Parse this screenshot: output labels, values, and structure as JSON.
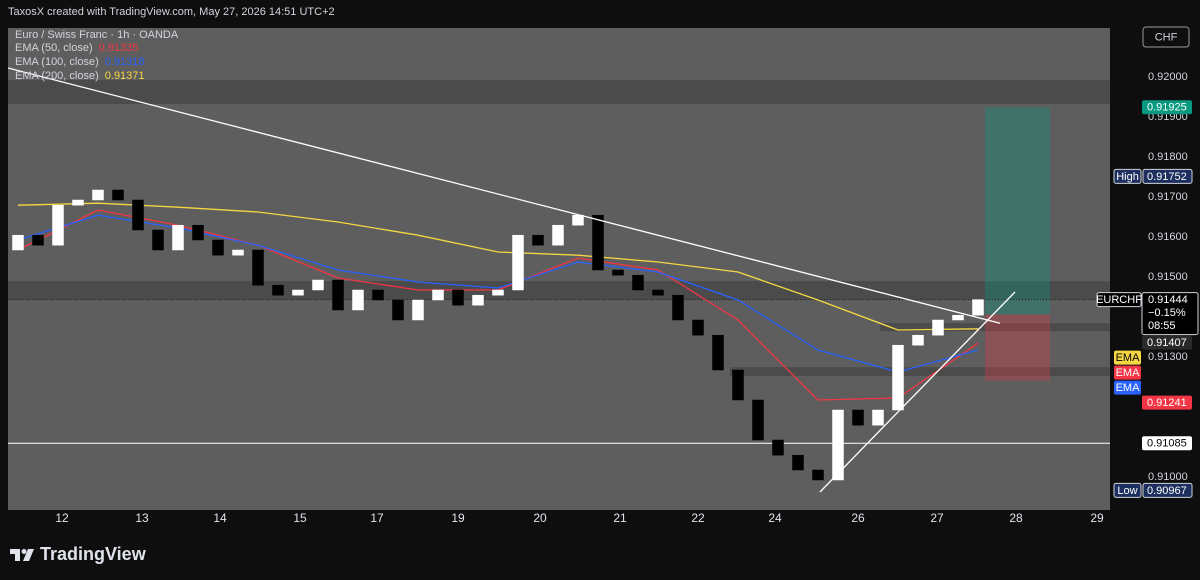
{
  "chart_data": {
    "type": "candlestick",
    "attribution": "TaxosX created with TradingView.com, May 27, 2026 14:51 UTC+2",
    "title": "Euro / Swiss Franc · 1h · OANDA",
    "currency": "CHF",
    "brand": "TradingView",
    "symbol": "EURCHF",
    "x": [
      0,
      1,
      2,
      3,
      4,
      5,
      6,
      7,
      8,
      9,
      10,
      11,
      12,
      13,
      14,
      15,
      16,
      17,
      18,
      19,
      20,
      21,
      22,
      23,
      24,
      25,
      26,
      27,
      28,
      29,
      30,
      31,
      32,
      33,
      34,
      35,
      36,
      37,
      38,
      39,
      40,
      41,
      42,
      43,
      44,
      45,
      46,
      47,
      48
    ],
    "open": [
      0.91568,
      0.91605,
      0.9158,
      0.9168,
      0.91693,
      0.91718,
      0.91693,
      0.91618,
      0.91568,
      0.9163,
      0.91593,
      0.91555,
      0.91568,
      0.9148,
      0.91455,
      0.91468,
      0.91493,
      0.91418,
      0.91468,
      0.91443,
      0.91393,
      0.91443,
      0.91468,
      0.9143,
      0.91455,
      0.91468,
      0.91605,
      0.9158,
      0.9163,
      0.91655,
      0.91518,
      0.91505,
      0.91468,
      0.91455,
      0.91393,
      0.91355,
      0.91268,
      0.91193,
      0.91093,
      0.91055,
      0.91018,
      0.90993,
      0.91168,
      0.9113,
      0.91168,
      0.9133,
      0.91355,
      0.91393,
      0.91405
    ],
    "high": {
      "label": "High",
      "value": 0.91752
    },
    "low": {
      "label": "Low",
      "value": 0.90967
    },
    "close": [
      0.91605,
      0.9158,
      0.9168,
      0.91693,
      0.91718,
      0.91693,
      0.91618,
      0.91568,
      0.9163,
      0.91593,
      0.91555,
      0.91568,
      0.9148,
      0.91455,
      0.91468,
      0.91493,
      0.91418,
      0.91468,
      0.91443,
      0.91393,
      0.91443,
      0.91468,
      0.9143,
      0.91455,
      0.91468,
      0.91605,
      0.9158,
      0.9163,
      0.91655,
      0.91518,
      0.91505,
      0.91468,
      0.91455,
      0.91393,
      0.91355,
      0.91268,
      0.91193,
      0.91093,
      0.91055,
      0.91018,
      0.90993,
      0.91168,
      0.9113,
      0.91168,
      0.9133,
      0.91355,
      0.91393,
      0.91405,
      0.91444
    ],
    "up_color": "#ffffff",
    "down_color": "#000000",
    "xlim": [
      -0.5,
      54.6
    ],
    "xticks": [
      {
        "value": 2.2,
        "label": "12"
      },
      {
        "value": 6.2,
        "label": "13"
      },
      {
        "value": 10.1,
        "label": "14"
      },
      {
        "value": 14.1,
        "label": "15"
      },
      {
        "value": 17.95,
        "label": "17"
      },
      {
        "value": 22,
        "label": "19"
      },
      {
        "value": 26.1,
        "label": "20"
      },
      {
        "value": 30.1,
        "label": "21"
      },
      {
        "value": 34,
        "label": "22"
      },
      {
        "value": 37.85,
        "label": "24"
      },
      {
        "value": 42,
        "label": "26"
      },
      {
        "value": 45.95,
        "label": "27"
      },
      {
        "value": 49.9,
        "label": "28"
      },
      {
        "value": 53.95,
        "label": "29"
      }
    ],
    "ylim": [
      0.90918,
      0.92123
    ],
    "yticks": [
      {
        "value": 0.92,
        "label": "0.92000"
      },
      {
        "value": 0.919,
        "label": "0.91900"
      },
      {
        "value": 0.918,
        "label": "0.91800"
      },
      {
        "value": 0.917,
        "label": "0.91700"
      },
      {
        "value": 0.916,
        "label": "0.91600"
      },
      {
        "value": 0.915,
        "label": "0.91500"
      },
      {
        "value": 0.913,
        "label": "0.91300"
      },
      {
        "value": 0.91,
        "label": "0.91000"
      }
    ],
    "grid": false,
    "series": [
      {
        "name": "EMA (50, close)",
        "color": "#f23645",
        "tag": "EMA",
        "x": [
          0,
          4,
          8,
          12,
          16,
          20,
          24,
          28,
          32,
          36,
          40,
          44,
          48
        ],
        "values": [
          0.91568,
          0.91668,
          0.9163,
          0.9158,
          0.91498,
          0.91468,
          0.91468,
          0.91548,
          0.91518,
          0.91393,
          0.91193,
          0.91198,
          0.91335
        ]
      },
      {
        "name": "EMA (100, close)",
        "color": "#2962ff",
        "tag": "EMA",
        "x": [
          0,
          4,
          8,
          12,
          16,
          20,
          24,
          28,
          32,
          36,
          40,
          44,
          48
        ],
        "values": [
          0.91593,
          0.91655,
          0.91623,
          0.9158,
          0.91518,
          0.91488,
          0.91473,
          0.91538,
          0.91513,
          0.91443,
          0.91318,
          0.91263,
          0.91318
        ]
      },
      {
        "name": "EMA (200, close)",
        "color": "#f5d742",
        "tag": "EMA",
        "x": [
          0,
          4,
          8,
          12,
          16,
          20,
          24,
          28,
          32,
          36,
          40,
          44,
          48
        ],
        "values": [
          0.9168,
          0.91685,
          0.91675,
          0.91663,
          0.91638,
          0.91605,
          0.91563,
          0.91555,
          0.91538,
          0.91513,
          0.91443,
          0.91368,
          0.91371
        ]
      }
    ],
    "zones": [
      {
        "start": -0.5,
        "from": 0.91993,
        "to": 0.91933
      },
      {
        "start": -0.5,
        "from": 0.9149,
        "to": 0.91443
      },
      {
        "start": 43.1,
        "from": 0.91385,
        "to": 0.91365
      },
      {
        "start": 35.6,
        "from": 0.91275,
        "to": 0.91253
      }
    ],
    "trendlines": [
      {
        "x": [
          -0.5,
          49.1
        ],
        "values": [
          0.92023,
          0.91385
        ]
      },
      {
        "x": [
          40.1,
          49.85
        ],
        "values": [
          0.90963,
          0.91463
        ]
      }
    ],
    "hline": {
      "value": 0.91085
    },
    "position": {
      "start": 48.35,
      "end": 51.6,
      "entry": 0.91407,
      "target": 0.91925,
      "stop": 0.91241
    },
    "last_price": 0.91444,
    "change": "−0.15%",
    "countdown": "08:55"
  }
}
